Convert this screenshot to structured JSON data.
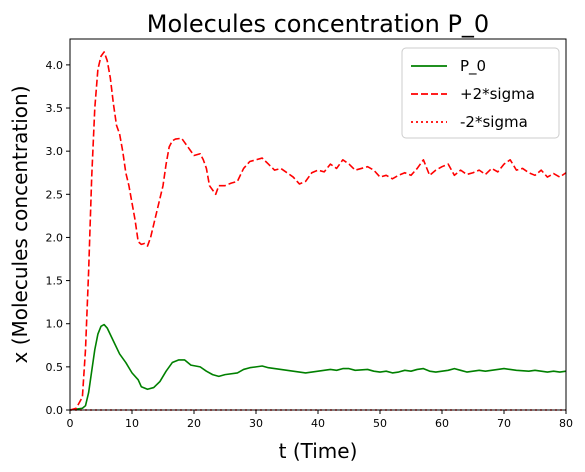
{
  "chart_data": {
    "type": "line",
    "title": "Molecules concentration P_0",
    "xlabel": "t (Time)",
    "ylabel": "x (Molecules concentration)",
    "xlim": [
      0,
      80
    ],
    "ylim": [
      0,
      4.3
    ],
    "x_ticks": [
      0,
      10,
      20,
      30,
      40,
      50,
      60,
      70,
      80
    ],
    "y_ticks": [
      0.0,
      0.5,
      1.0,
      1.5,
      2.0,
      2.5,
      3.0,
      3.5,
      4.0
    ],
    "grid": false,
    "legend_position": "top-right",
    "series": [
      {
        "name": "P_0",
        "color": "#008000",
        "dash": "solid",
        "points": [
          [
            0,
            0.0
          ],
          [
            1,
            0.01
          ],
          [
            2,
            0.02
          ],
          [
            2.5,
            0.05
          ],
          [
            3,
            0.2
          ],
          [
            3.5,
            0.45
          ],
          [
            4,
            0.7
          ],
          [
            4.5,
            0.88
          ],
          [
            5,
            0.97
          ],
          [
            5.5,
            0.99
          ],
          [
            6,
            0.95
          ],
          [
            7,
            0.8
          ],
          [
            8,
            0.65
          ],
          [
            9,
            0.55
          ],
          [
            10,
            0.43
          ],
          [
            11,
            0.35
          ],
          [
            11.5,
            0.27
          ],
          [
            12.5,
            0.24
          ],
          [
            13.5,
            0.26
          ],
          [
            14.5,
            0.33
          ],
          [
            15.5,
            0.45
          ],
          [
            16.5,
            0.55
          ],
          [
            17.5,
            0.58
          ],
          [
            18.5,
            0.58
          ],
          [
            19.5,
            0.52
          ],
          [
            21,
            0.5
          ],
          [
            22,
            0.45
          ],
          [
            23,
            0.41
          ],
          [
            24,
            0.39
          ],
          [
            25,
            0.41
          ],
          [
            27,
            0.43
          ],
          [
            28,
            0.47
          ],
          [
            29,
            0.49
          ],
          [
            30,
            0.5
          ],
          [
            31,
            0.51
          ],
          [
            32,
            0.49
          ],
          [
            33,
            0.48
          ],
          [
            35,
            0.46
          ],
          [
            37,
            0.44
          ],
          [
            38,
            0.43
          ],
          [
            40,
            0.45
          ],
          [
            42,
            0.47
          ],
          [
            43,
            0.46
          ],
          [
            44,
            0.48
          ],
          [
            45,
            0.48
          ],
          [
            46,
            0.46
          ],
          [
            48,
            0.47
          ],
          [
            49,
            0.45
          ],
          [
            50,
            0.44
          ],
          [
            51,
            0.45
          ],
          [
            52,
            0.43
          ],
          [
            53,
            0.44
          ],
          [
            54,
            0.46
          ],
          [
            55,
            0.45
          ],
          [
            56,
            0.47
          ],
          [
            57,
            0.48
          ],
          [
            58,
            0.45
          ],
          [
            59,
            0.44
          ],
          [
            60,
            0.45
          ],
          [
            61,
            0.46
          ],
          [
            62,
            0.48
          ],
          [
            63,
            0.46
          ],
          [
            64,
            0.44
          ],
          [
            65,
            0.45
          ],
          [
            66,
            0.46
          ],
          [
            67,
            0.45
          ],
          [
            68,
            0.46
          ],
          [
            69,
            0.47
          ],
          [
            70,
            0.48
          ],
          [
            71,
            0.47
          ],
          [
            72,
            0.46
          ],
          [
            74,
            0.45
          ],
          [
            75,
            0.46
          ],
          [
            77,
            0.44
          ],
          [
            78,
            0.45
          ],
          [
            79,
            0.44
          ],
          [
            80,
            0.45
          ]
        ]
      },
      {
        "name": "+2*sigma",
        "color": "#ff0000",
        "dash": "dashed",
        "points": [
          [
            0,
            0.0
          ],
          [
            1,
            0.02
          ],
          [
            2,
            0.15
          ],
          [
            2.5,
            0.7
          ],
          [
            3,
            1.6
          ],
          [
            3.5,
            2.7
          ],
          [
            4,
            3.5
          ],
          [
            4.5,
            3.95
          ],
          [
            5,
            4.1
          ],
          [
            5.5,
            4.15
          ],
          [
            6,
            4.05
          ],
          [
            6.5,
            3.85
          ],
          [
            7,
            3.55
          ],
          [
            7.5,
            3.3
          ],
          [
            8,
            3.2
          ],
          [
            8.5,
            3.0
          ],
          [
            9,
            2.75
          ],
          [
            9.5,
            2.6
          ],
          [
            10,
            2.4
          ],
          [
            10.5,
            2.2
          ],
          [
            11,
            1.95
          ],
          [
            11.5,
            1.92
          ],
          [
            12,
            1.93
          ],
          [
            12.5,
            1.9
          ],
          [
            13,
            2.0
          ],
          [
            13.5,
            2.15
          ],
          [
            14,
            2.3
          ],
          [
            15,
            2.6
          ],
          [
            15.5,
            2.85
          ],
          [
            16,
            3.05
          ],
          [
            16.5,
            3.12
          ],
          [
            17,
            3.14
          ],
          [
            18,
            3.15
          ],
          [
            18.5,
            3.1
          ],
          [
            19,
            3.05
          ],
          [
            20,
            2.95
          ],
          [
            21,
            2.97
          ],
          [
            21.5,
            2.9
          ],
          [
            22,
            2.8
          ],
          [
            22.5,
            2.6
          ],
          [
            23,
            2.55
          ],
          [
            23.5,
            2.5
          ],
          [
            24,
            2.6
          ],
          [
            25,
            2.6
          ],
          [
            26,
            2.63
          ],
          [
            27,
            2.65
          ],
          [
            28,
            2.8
          ],
          [
            29,
            2.88
          ],
          [
            30,
            2.9
          ],
          [
            31,
            2.92
          ],
          [
            32,
            2.85
          ],
          [
            33,
            2.78
          ],
          [
            34,
            2.8
          ],
          [
            35,
            2.75
          ],
          [
            36,
            2.7
          ],
          [
            37,
            2.62
          ],
          [
            38,
            2.65
          ],
          [
            39,
            2.75
          ],
          [
            40,
            2.78
          ],
          [
            41,
            2.76
          ],
          [
            42,
            2.85
          ],
          [
            43,
            2.8
          ],
          [
            44,
            2.9
          ],
          [
            45,
            2.85
          ],
          [
            46,
            2.78
          ],
          [
            47,
            2.8
          ],
          [
            48,
            2.82
          ],
          [
            49,
            2.78
          ],
          [
            50,
            2.7
          ],
          [
            51,
            2.72
          ],
          [
            52,
            2.68
          ],
          [
            53,
            2.72
          ],
          [
            54,
            2.75
          ],
          [
            55,
            2.72
          ],
          [
            56,
            2.8
          ],
          [
            57,
            2.9
          ],
          [
            58,
            2.72
          ],
          [
            59,
            2.78
          ],
          [
            60,
            2.82
          ],
          [
            61,
            2.85
          ],
          [
            62,
            2.72
          ],
          [
            63,
            2.78
          ],
          [
            64,
            2.73
          ],
          [
            65,
            2.75
          ],
          [
            66,
            2.78
          ],
          [
            67,
            2.73
          ],
          [
            68,
            2.8
          ],
          [
            69,
            2.76
          ],
          [
            70,
            2.85
          ],
          [
            71,
            2.9
          ],
          [
            72,
            2.78
          ],
          [
            73,
            2.8
          ],
          [
            74,
            2.75
          ],
          [
            75,
            2.72
          ],
          [
            76,
            2.78
          ],
          [
            77,
            2.7
          ],
          [
            78,
            2.74
          ],
          [
            79,
            2.7
          ],
          [
            80,
            2.75
          ]
        ]
      },
      {
        "name": "-2*sigma",
        "color": "#ff0000",
        "dash": "dotted",
        "points": [
          [
            0,
            0.0
          ],
          [
            80,
            0.0
          ]
        ]
      }
    ]
  }
}
